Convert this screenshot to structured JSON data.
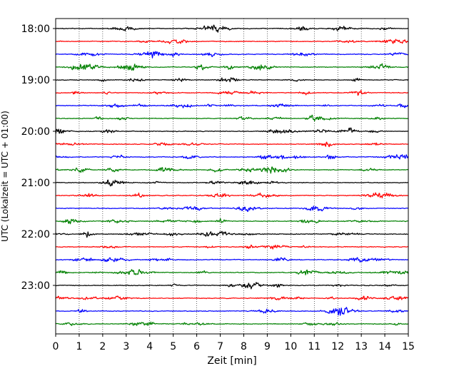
{
  "chart_data": {
    "type": "line",
    "title": "",
    "xlabel": "Zeit  [min]",
    "ylabel": "UTC (Lokalzeit = UTC + 01:00)",
    "xlim": [
      0,
      15
    ],
    "x_ticks": [
      "0",
      "1",
      "2",
      "3",
      "4",
      "5",
      "6",
      "7",
      "8",
      "9",
      "10",
      "11",
      "12",
      "13",
      "14",
      "15"
    ],
    "y_ticks": [
      "18:00",
      "19:00",
      "20:00",
      "21:00",
      "22:00",
      "23:00"
    ],
    "start_time": "18:00",
    "minutes_per_trace": 15,
    "trace_count": 24,
    "grid_x": true,
    "colors": [
      "#000000",
      "#ff0000",
      "#0000ff",
      "#008000"
    ],
    "series": [
      {
        "start": "18:00",
        "color": "#000000"
      },
      {
        "start": "18:15",
        "color": "#ff0000"
      },
      {
        "start": "18:30",
        "color": "#0000ff"
      },
      {
        "start": "18:45",
        "color": "#008000"
      },
      {
        "start": "19:00",
        "color": "#000000"
      },
      {
        "start": "19:15",
        "color": "#ff0000"
      },
      {
        "start": "19:30",
        "color": "#0000ff"
      },
      {
        "start": "19:45",
        "color": "#008000"
      },
      {
        "start": "20:00",
        "color": "#000000"
      },
      {
        "start": "20:15",
        "color": "#ff0000"
      },
      {
        "start": "20:30",
        "color": "#0000ff"
      },
      {
        "start": "20:45",
        "color": "#008000"
      },
      {
        "start": "21:00",
        "color": "#000000"
      },
      {
        "start": "21:15",
        "color": "#ff0000"
      },
      {
        "start": "21:30",
        "color": "#0000ff"
      },
      {
        "start": "21:45",
        "color": "#008000"
      },
      {
        "start": "22:00",
        "color": "#000000"
      },
      {
        "start": "22:15",
        "color": "#ff0000"
      },
      {
        "start": "22:30",
        "color": "#0000ff"
      },
      {
        "start": "22:45",
        "color": "#008000"
      },
      {
        "start": "23:00",
        "color": "#000000"
      },
      {
        "start": "23:15",
        "color": "#ff0000"
      },
      {
        "start": "23:30",
        "color": "#0000ff"
      },
      {
        "start": "23:45",
        "color": "#008000"
      }
    ]
  }
}
